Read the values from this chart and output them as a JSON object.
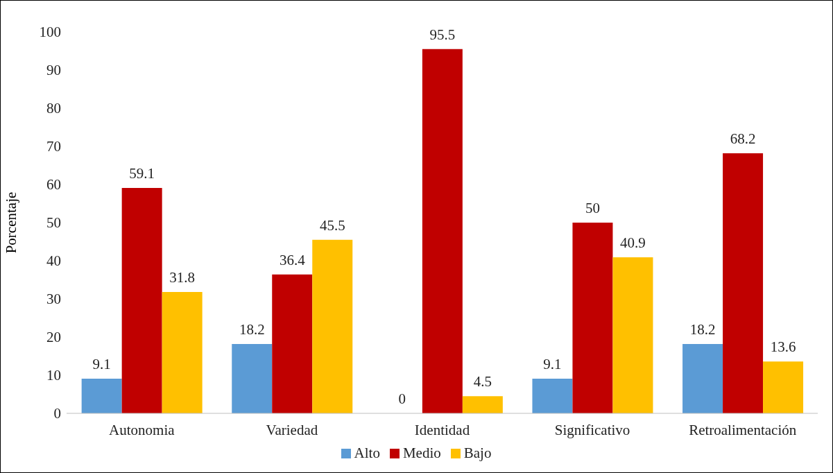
{
  "chart_data": {
    "type": "bar",
    "ylabel": "Porcentaje",
    "categories": [
      "Autonomia",
      "Variedad",
      "Identidad",
      "Significativo",
      "Retroalimentación"
    ],
    "series": [
      {
        "name": "Alto",
        "color": "#5b9bd5",
        "values": [
          9.1,
          18.2,
          0,
          9.1,
          18.2
        ]
      },
      {
        "name": "Medio",
        "color": "#c00000",
        "values": [
          59.1,
          36.4,
          95.5,
          50,
          68.2
        ]
      },
      {
        "name": "Bajo",
        "color": "#ffc000",
        "values": [
          31.8,
          45.5,
          4.5,
          40.9,
          13.6
        ]
      }
    ],
    "ylim": [
      0,
      100
    ],
    "yticks": [
      0,
      10,
      20,
      30,
      40,
      50,
      60,
      70,
      80,
      90,
      100
    ],
    "data_labels": true,
    "legend": "bottom"
  }
}
